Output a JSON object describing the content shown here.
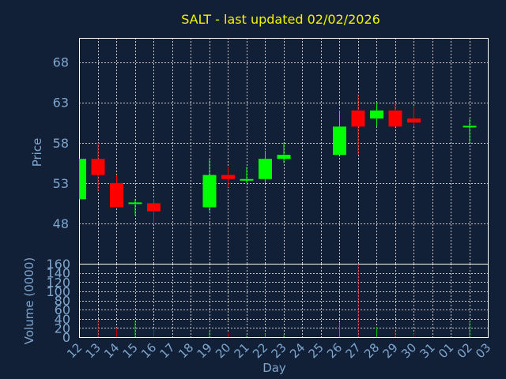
{
  "chart_data": {
    "type": "candlestick",
    "title": "SALT - last updated 02/02/2026",
    "xlabel": "Day",
    "ylabel": "Price",
    "volume_label": "Volume (0000)",
    "x_ticks": [
      "12",
      "13",
      "14",
      "15",
      "16",
      "17",
      "18",
      "19",
      "20",
      "21",
      "22",
      "23",
      "24",
      "25",
      "26",
      "27",
      "28",
      "29",
      "30",
      "31",
      "01",
      "02",
      "03"
    ],
    "price_ticks": [
      48,
      53,
      58,
      63,
      68
    ],
    "price_ylim": [
      43,
      71
    ],
    "volume_ticks": [
      0,
      20,
      40,
      60,
      80,
      100,
      120,
      140,
      160
    ],
    "volume_ylim": [
      0,
      160
    ],
    "grid": true,
    "colors": {
      "background": "#112036",
      "plot_border": "#ffffff",
      "grid": "#c8c8c8",
      "title": "#f5f500",
      "axis_text": "#7fa6cf",
      "up": "#00ff00",
      "down": "#ff0000",
      "volume_up": "#00c000",
      "volume_down": "#c00000"
    },
    "candles": [
      {
        "x": 0,
        "open": 51.0,
        "high": 56.0,
        "low": 51.0,
        "close": 56.0,
        "volume": 0
      },
      {
        "x": 1,
        "open": 56.0,
        "high": 58.0,
        "low": 52.0,
        "close": 54.0,
        "volume": 38
      },
      {
        "x": 2,
        "open": 53.0,
        "high": 54.0,
        "low": 50.0,
        "close": 50.0,
        "volume": 20
      },
      {
        "x": 3,
        "open": 50.5,
        "high": 51.0,
        "low": 49.0,
        "close": 50.5,
        "volume": 35
      },
      {
        "x": 4,
        "open": 50.5,
        "high": 51.0,
        "low": 48.0,
        "close": 49.5,
        "volume": 15
      },
      {
        "x": 7,
        "open": 50.0,
        "high": 56.0,
        "low": 49.5,
        "close": 54.0,
        "volume": 12
      },
      {
        "x": 8,
        "open": 54.0,
        "high": 55.0,
        "low": 52.5,
        "close": 53.5,
        "volume": 10
      },
      {
        "x": 9,
        "open": 53.3,
        "high": 55.0,
        "low": 53.0,
        "close": 53.5,
        "volume": 4
      },
      {
        "x": 10,
        "open": 53.5,
        "high": 57.0,
        "low": 53.0,
        "close": 56.0,
        "volume": 8
      },
      {
        "x": 11,
        "open": 56.0,
        "high": 58.0,
        "low": 55.5,
        "close": 56.5,
        "volume": 6
      },
      {
        "x": 14,
        "open": 56.5,
        "high": 62.0,
        "low": 56.5,
        "close": 60.0,
        "volume": 32
      },
      {
        "x": 15,
        "open": 62.0,
        "high": 64.0,
        "low": 56.5,
        "close": 60.0,
        "volume": 160
      },
      {
        "x": 16,
        "open": 61.0,
        "high": 63.0,
        "low": 60.0,
        "close": 62.0,
        "volume": 22
      },
      {
        "x": 17,
        "open": 62.0,
        "high": 63.0,
        "low": 60.0,
        "close": 60.0,
        "volume": 14
      },
      {
        "x": 18,
        "open": 61.0,
        "high": 62.5,
        "low": 60.0,
        "close": 60.5,
        "volume": 8
      },
      {
        "x": 21,
        "open": 60.0,
        "high": 61.0,
        "low": 58.0,
        "close": 60.0,
        "volume": 35
      }
    ]
  }
}
